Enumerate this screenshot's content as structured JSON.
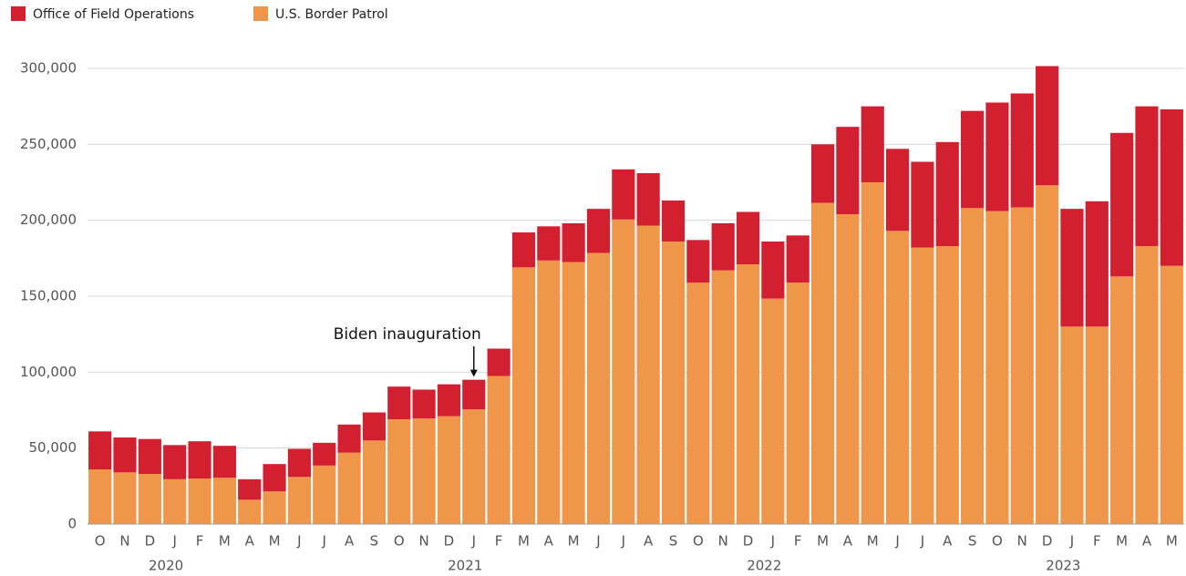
{
  "chart_data": {
    "type": "stacked_bar",
    "categories": [
      "O",
      "N",
      "D",
      "J",
      "F",
      "M",
      "A",
      "M",
      "J",
      "J",
      "A",
      "S",
      "O",
      "N",
      "D",
      "J",
      "F",
      "M",
      "A",
      "M",
      "J",
      "J",
      "A",
      "S",
      "O",
      "N",
      "D",
      "J",
      "F",
      "M",
      "A",
      "M",
      "J",
      "J",
      "A",
      "S",
      "O",
      "N",
      "D",
      "J",
      "F",
      "M",
      "A",
      "M"
    ],
    "year_labels": [
      "2020",
      "2021",
      "2022",
      "2023"
    ],
    "series": [
      {
        "name": "Office of Field Operations",
        "color": "#d22030",
        "values": [
          25000,
          23000,
          23000,
          22500,
          24500,
          21000,
          13500,
          18000,
          18500,
          15000,
          18500,
          18500,
          21500,
          19000,
          21000,
          19500,
          18000,
          23000,
          22500,
          25500,
          29000,
          33000,
          34500,
          27000,
          28000,
          31000,
          34500,
          37500,
          31000,
          38500,
          57500,
          50000,
          54000,
          56500,
          68500,
          64000,
          71500,
          75000,
          78500,
          77500,
          82500,
          94500,
          92000,
          103000
        ]
      },
      {
        "name": "U.S. Border Patrol",
        "color": "#f0964a",
        "values": [
          36000,
          34000,
          33000,
          29500,
          30000,
          30500,
          16000,
          21500,
          31000,
          38500,
          47000,
          55000,
          69000,
          69500,
          71000,
          75500,
          97500,
          169000,
          173500,
          172500,
          178500,
          200500,
          196500,
          186000,
          159000,
          167000,
          171000,
          148500,
          159000,
          211500,
          204000,
          225000,
          193000,
          182000,
          183000,
          208000,
          206000,
          208500,
          223000,
          130000,
          130000,
          163000,
          183000,
          170000
        ]
      }
    ],
    "annotation": "Biden inauguration",
    "ylim": [
      0,
      300000
    ],
    "yticks": [
      0,
      {
        "value": 50000,
        "label": "50,000"
      },
      {
        "value": 100000,
        "label": "100,000"
      },
      {
        "value": 150000,
        "label": "150,000"
      },
      {
        "value": 200000,
        "label": "200,000"
      },
      {
        "value": 250000,
        "label": "250,000"
      },
      {
        "value": 300000,
        "label": "300,000"
      }
    ],
    "grid": true
  }
}
